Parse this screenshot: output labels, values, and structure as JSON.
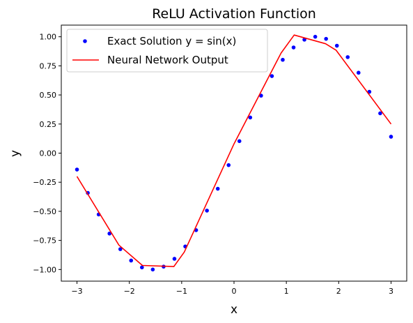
{
  "chart_data": {
    "type": "line",
    "title": "ReLU Activation Function",
    "xlabel": "x",
    "ylabel": "y",
    "xlim": [
      -3.3,
      3.3
    ],
    "ylim": [
      -1.1,
      1.1
    ],
    "xticks": [
      -3,
      -2,
      -1,
      0,
      1,
      2,
      3
    ],
    "xtick_labels": [
      "−3",
      "−2",
      "−1",
      "0",
      "1",
      "2",
      "3"
    ],
    "yticks": [
      -1.0,
      -0.75,
      -0.5,
      -0.25,
      0.0,
      0.25,
      0.5,
      0.75,
      1.0
    ],
    "ytick_labels": [
      "−1.00",
      "−0.75",
      "−0.50",
      "−0.25",
      "0.00",
      "0.25",
      "0.50",
      "0.75",
      "1.00"
    ],
    "grid": false,
    "legend": "upper-left",
    "series": [
      {
        "name": "Exact Solution y = sin(x)",
        "style": "markers",
        "color": "#0000ff",
        "x": [
          -3.0,
          -2.793,
          -2.586,
          -2.379,
          -2.172,
          -1.966,
          -1.759,
          -1.552,
          -1.345,
          -1.138,
          -0.931,
          -0.724,
          -0.517,
          -0.31,
          -0.103,
          0.103,
          0.31,
          0.517,
          0.724,
          0.931,
          1.138,
          1.345,
          1.552,
          1.759,
          1.966,
          2.172,
          2.379,
          2.586,
          2.793,
          3.0
        ],
        "y": [
          -0.141,
          -0.342,
          -0.527,
          -0.691,
          -0.825,
          -0.923,
          -0.982,
          -1.0,
          -0.975,
          -0.908,
          -0.802,
          -0.662,
          -0.494,
          -0.306,
          -0.103,
          0.103,
          0.306,
          0.494,
          0.662,
          0.802,
          0.908,
          0.975,
          1.0,
          0.982,
          0.923,
          0.825,
          0.691,
          0.527,
          0.342,
          0.141
        ]
      },
      {
        "name": "Neural Network Output",
        "style": "line",
        "color": "#ff0000",
        "x": [
          -3.0,
          -2.2,
          -1.75,
          -1.15,
          -0.95,
          0.0,
          0.9,
          1.15,
          1.75,
          1.95,
          3.0
        ],
        "y": [
          -0.2,
          -0.79,
          -0.965,
          -0.975,
          -0.85,
          0.08,
          0.86,
          1.015,
          0.94,
          0.885,
          0.25
        ]
      }
    ]
  }
}
